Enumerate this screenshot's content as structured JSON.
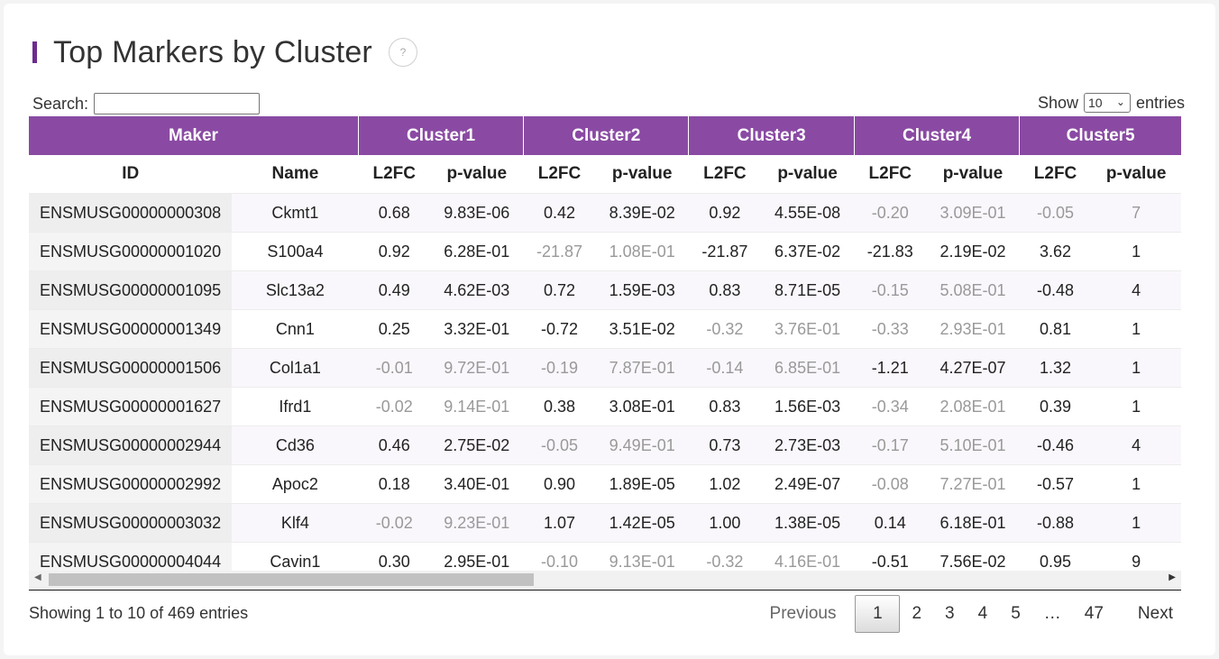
{
  "title": "Top Markers by Cluster",
  "search": {
    "label": "Search:",
    "value": ""
  },
  "length": {
    "show_label": "Show",
    "selected": "10",
    "entries_label": "entries"
  },
  "table": {
    "group_headers": [
      "Maker",
      "Cluster1",
      "Cluster2",
      "Cluster3",
      "Cluster4",
      "Cluster5"
    ],
    "sub_headers": [
      "ID",
      "Name",
      "L2FC",
      "p-value",
      "L2FC",
      "p-value",
      "L2FC",
      "p-value",
      "L2FC",
      "p-value",
      "L2FC",
      "p-value"
    ],
    "rows": [
      [
        "ENSMUSG00000000308",
        "Ckmt1",
        "0.68",
        "9.83E-06",
        "0.42",
        "8.39E-02",
        "0.92",
        "4.55E-08",
        "-0.20",
        "3.09E-01",
        "-0.05",
        "7"
      ],
      [
        "ENSMUSG00000001020",
        "S100a4",
        "0.92",
        "6.28E-01",
        "-21.87",
        "1.08E-01",
        "-21.87",
        "6.37E-02",
        "-21.83",
        "2.19E-02",
        "3.62",
        "1"
      ],
      [
        "ENSMUSG00000001095",
        "Slc13a2",
        "0.49",
        "4.62E-03",
        "0.72",
        "1.59E-03",
        "0.83",
        "8.71E-05",
        "-0.15",
        "5.08E-01",
        "-0.48",
        "4"
      ],
      [
        "ENSMUSG00000001349",
        "Cnn1",
        "0.25",
        "3.32E-01",
        "-0.72",
        "3.51E-02",
        "-0.32",
        "3.76E-01",
        "-0.33",
        "2.93E-01",
        "0.81",
        "1"
      ],
      [
        "ENSMUSG00000001506",
        "Col1a1",
        "-0.01",
        "9.72E-01",
        "-0.19",
        "7.87E-01",
        "-0.14",
        "6.85E-01",
        "-1.21",
        "4.27E-07",
        "1.32",
        "1"
      ],
      [
        "ENSMUSG00000001627",
        "Ifrd1",
        "-0.02",
        "9.14E-01",
        "0.38",
        "3.08E-01",
        "0.83",
        "1.56E-03",
        "-0.34",
        "2.08E-01",
        "0.39",
        "1"
      ],
      [
        "ENSMUSG00000002944",
        "Cd36",
        "0.46",
        "2.75E-02",
        "-0.05",
        "9.49E-01",
        "0.73",
        "2.73E-03",
        "-0.17",
        "5.10E-01",
        "-0.46",
        "4"
      ],
      [
        "ENSMUSG00000002992",
        "Apoc2",
        "0.18",
        "3.40E-01",
        "0.90",
        "1.89E-05",
        "1.02",
        "2.49E-07",
        "-0.08",
        "7.27E-01",
        "-0.57",
        "1"
      ],
      [
        "ENSMUSG00000003032",
        "Klf4",
        "-0.02",
        "9.23E-01",
        "1.07",
        "1.42E-05",
        "1.00",
        "1.38E-05",
        "0.14",
        "6.18E-01",
        "-0.88",
        "1"
      ],
      [
        "ENSMUSG00000004044",
        "Cavin1",
        "0.30",
        "2.95E-01",
        "-0.10",
        "9.13E-01",
        "-0.32",
        "4.16E-01",
        "-0.51",
        "7.56E-02",
        "0.95",
        "9"
      ]
    ],
    "muted": [
      [
        0,
        8
      ],
      [
        0,
        9
      ],
      [
        0,
        10
      ],
      [
        0,
        11
      ],
      [
        1,
        4
      ],
      [
        1,
        5
      ],
      [
        2,
        8
      ],
      [
        2,
        9
      ],
      [
        3,
        6
      ],
      [
        3,
        7
      ],
      [
        3,
        8
      ],
      [
        3,
        9
      ],
      [
        4,
        2
      ],
      [
        4,
        3
      ],
      [
        4,
        4
      ],
      [
        4,
        5
      ],
      [
        4,
        6
      ],
      [
        4,
        7
      ],
      [
        5,
        2
      ],
      [
        5,
        3
      ],
      [
        5,
        8
      ],
      [
        5,
        9
      ],
      [
        6,
        4
      ],
      [
        6,
        5
      ],
      [
        6,
        8
      ],
      [
        6,
        9
      ],
      [
        7,
        8
      ],
      [
        7,
        9
      ],
      [
        8,
        2
      ],
      [
        8,
        3
      ],
      [
        9,
        4
      ],
      [
        9,
        5
      ],
      [
        9,
        6
      ],
      [
        9,
        7
      ]
    ]
  },
  "info": "Showing 1 to 10 of 469 entries",
  "pagination": {
    "previous": "Previous",
    "pages": [
      "1",
      "2",
      "3",
      "4",
      "5",
      "…",
      "47"
    ],
    "current": "1",
    "next": "Next"
  },
  "colors": {
    "header_purple": "#8a4aa3",
    "title_accent": "#6b2c8f",
    "muted_text": "#999999"
  }
}
